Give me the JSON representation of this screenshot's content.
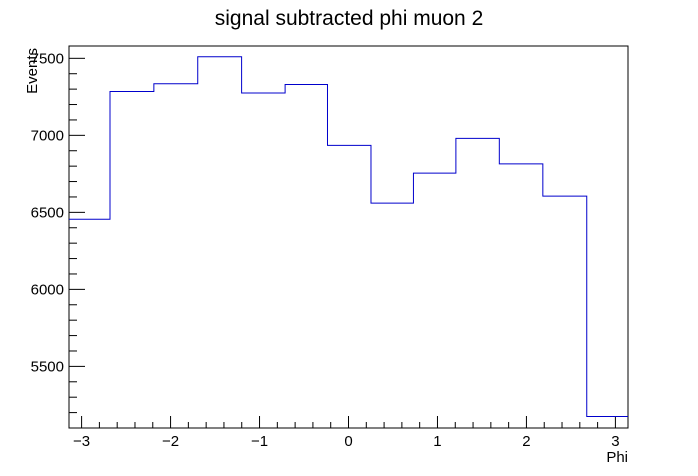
{
  "chart_data": {
    "type": "histogram",
    "title": "signal subtracted phi muon 2",
    "xlabel": "Phi",
    "ylabel": "Events",
    "xlim": [
      -3.1416,
      3.1416
    ],
    "ylim": [
      5100,
      7580
    ],
    "line_color": "#0000cc",
    "grid": false,
    "legend": "none",
    "x_ticks": [
      -3,
      -2,
      -1,
      0,
      1,
      2,
      3
    ],
    "x_tick_labels": [
      "−3",
      "−2",
      "−1",
      "0",
      "1",
      "2",
      "3"
    ],
    "y_ticks": [
      5500,
      6000,
      6500,
      7000,
      7500
    ],
    "y_tick_labels": [
      "5500",
      "6000",
      "6500",
      "7000",
      "7500"
    ],
    "bin_edges": [
      -3.1416,
      -2.6808,
      -2.1878,
      -1.6946,
      -1.2014,
      -0.7125,
      -0.2361,
      0.2527,
      0.7299,
      1.2071,
      1.6952,
      2.1844,
      2.678,
      3.1416
    ],
    "values": [
      6455,
      7285,
      7335,
      7510,
      7275,
      7330,
      6935,
      6560,
      6755,
      6980,
      6815,
      6605,
      5175
    ]
  }
}
